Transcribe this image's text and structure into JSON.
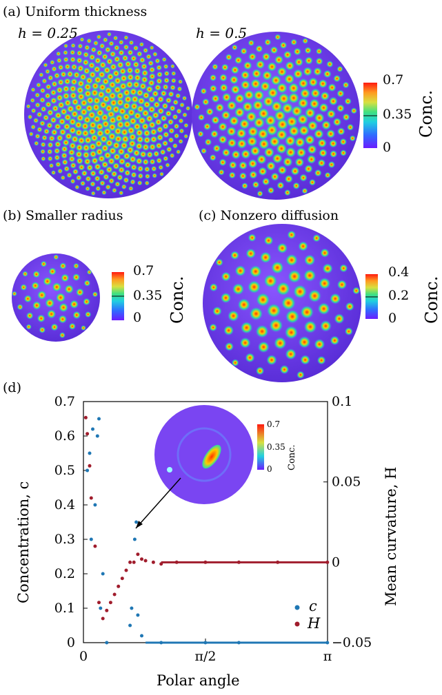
{
  "panels": {
    "a": {
      "title": "(a) Uniform thickness",
      "h_left": "h = 0.25",
      "h_right": "h = 0.5"
    },
    "b": {
      "title": "(b) Smaller radius"
    },
    "c": {
      "title": "(c) Nonzero diffusion"
    },
    "d": {
      "label": "(d)"
    }
  },
  "colorbars": [
    {
      "ticks": [
        "0.7",
        "0.35",
        "0"
      ],
      "label": "Conc."
    },
    {
      "ticks": [
        "0.7",
        "0.35",
        "0"
      ],
      "label": "Conc."
    },
    {
      "ticks": [
        "0.4",
        "0.2",
        "0"
      ],
      "label": "Conc."
    }
  ],
  "inset": {
    "ticks": [
      "0.7",
      "0.35",
      "0"
    ],
    "label": "Conc."
  },
  "colors": {
    "background_purple": "#7a45f2",
    "series_c": "#1f77b4",
    "series_H": "#a01c2c"
  },
  "chart_data": {
    "type": "scatter",
    "xlabel": "Polar angle",
    "ylabel_left": "Concentration, c",
    "ylabel_right": "Mean curvature, H",
    "x_ticks": [
      "0",
      "π/2",
      "π"
    ],
    "y_left_ticks": [
      "0",
      "0.1",
      "0.2",
      "0.3",
      "0.4",
      "0.5",
      "0.6",
      "0.7"
    ],
    "y_right_ticks": [
      "−0.05",
      "0",
      "0.05",
      "0.1"
    ],
    "xlim": [
      0,
      3.1416
    ],
    "ylim_left": [
      0,
      0.7
    ],
    "ylim_right": [
      -0.05,
      0.1
    ],
    "legend": {
      "position": "bottom-right",
      "entries": [
        "c",
        "H"
      ]
    },
    "series": [
      {
        "name": "c",
        "axis": "left",
        "x": [
          0.05,
          0.08,
          0.1,
          0.12,
          0.15,
          0.18,
          0.2,
          0.22,
          0.25,
          0.3,
          0.6,
          0.62,
          0.66,
          0.68,
          0.7,
          0.75,
          1.0,
          1.57,
          2.0,
          3.14
        ],
        "y": [
          0.5,
          0.55,
          0.3,
          0.62,
          0.4,
          0.6,
          0.65,
          0.1,
          0.2,
          0.0,
          0.05,
          0.1,
          0.3,
          0.35,
          0.08,
          0.02,
          0.0,
          0.0,
          0.0,
          0.0
        ]
      },
      {
        "name": "H",
        "axis": "right",
        "x": [
          0.03,
          0.05,
          0.08,
          0.1,
          0.15,
          0.2,
          0.25,
          0.3,
          0.35,
          0.4,
          0.45,
          0.5,
          0.55,
          0.6,
          0.65,
          0.7,
          0.75,
          0.8,
          0.9,
          1.0,
          1.2,
          1.57,
          2.0,
          2.5,
          3.14
        ],
        "y": [
          0.09,
          0.08,
          0.06,
          0.04,
          0.01,
          -0.025,
          -0.035,
          -0.03,
          -0.025,
          -0.02,
          -0.015,
          -0.01,
          -0.005,
          0.0,
          0.0,
          0.005,
          0.002,
          0.001,
          0.0,
          -0.001,
          0.0,
          0.0,
          0.0,
          0.0,
          0.0
        ]
      }
    ]
  }
}
